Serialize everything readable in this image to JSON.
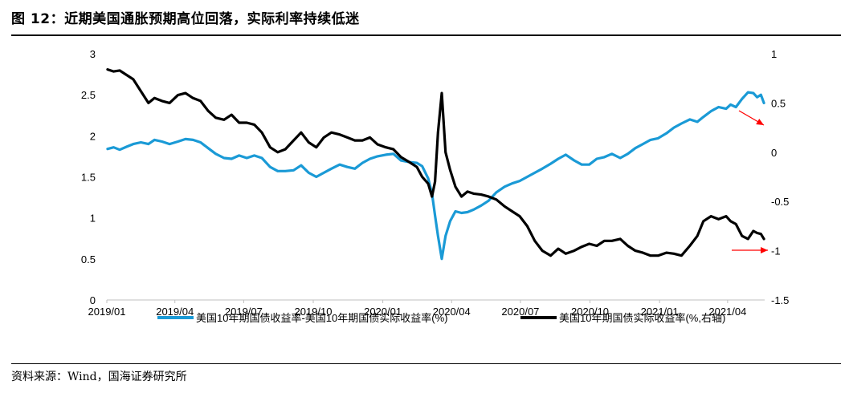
{
  "title": "图 12：近期美国通胀预期高位回落，实际利率持续低迷",
  "source": "资料来源：Wind，国海证券研究所",
  "colors": {
    "blue": "#1a9ad6",
    "black": "#000000",
    "red": "#ff0000",
    "axis": "#bfbfbf"
  },
  "chart_data": {
    "type": "line",
    "x_ticks": [
      "2019/01",
      "2019/04",
      "2019/07",
      "2019/10",
      "2020/01",
      "2020/04",
      "2020/07",
      "2020/10",
      "2021/01",
      "2021/04"
    ],
    "x_range": [
      "2019-01-01",
      "2021-05-20"
    ],
    "y_left": {
      "min": 0,
      "max": 3,
      "ticks": [
        "0",
        "0.5",
        "1",
        "1.5",
        "2",
        "2.5",
        "3"
      ]
    },
    "y_right": {
      "min": -1.5,
      "max": 1,
      "ticks": [
        "-1.5",
        "-1",
        "-0.5",
        "0",
        "0.5",
        "1"
      ]
    },
    "grid": false,
    "legend_position": "bottom",
    "series": [
      {
        "name": "美国10年期国债收益率-美国10年期国债实际收益率(%)",
        "axis": "left",
        "color": "#1a9ad6",
        "points": [
          [
            "2019-01-02",
            1.84
          ],
          [
            "2019-01-10",
            1.86
          ],
          [
            "2019-01-18",
            1.83
          ],
          [
            "2019-01-28",
            1.87
          ],
          [
            "2019-02-05",
            1.9
          ],
          [
            "2019-02-15",
            1.92
          ],
          [
            "2019-02-25",
            1.9
          ],
          [
            "2019-03-05",
            1.95
          ],
          [
            "2019-03-15",
            1.93
          ],
          [
            "2019-03-25",
            1.9
          ],
          [
            "2019-04-05",
            1.93
          ],
          [
            "2019-04-15",
            1.96
          ],
          [
            "2019-04-25",
            1.95
          ],
          [
            "2019-05-05",
            1.92
          ],
          [
            "2019-05-15",
            1.85
          ],
          [
            "2019-05-25",
            1.78
          ],
          [
            "2019-06-05",
            1.73
          ],
          [
            "2019-06-15",
            1.72
          ],
          [
            "2019-06-25",
            1.76
          ],
          [
            "2019-07-05",
            1.73
          ],
          [
            "2019-07-15",
            1.76
          ],
          [
            "2019-07-25",
            1.73
          ],
          [
            "2019-08-05",
            1.62
          ],
          [
            "2019-08-15",
            1.57
          ],
          [
            "2019-08-25",
            1.57
          ],
          [
            "2019-09-05",
            1.58
          ],
          [
            "2019-09-15",
            1.64
          ],
          [
            "2019-09-25",
            1.55
          ],
          [
            "2019-10-05",
            1.5
          ],
          [
            "2019-10-15",
            1.55
          ],
          [
            "2019-10-25",
            1.6
          ],
          [
            "2019-11-05",
            1.65
          ],
          [
            "2019-11-15",
            1.62
          ],
          [
            "2019-11-25",
            1.6
          ],
          [
            "2019-12-05",
            1.67
          ],
          [
            "2019-12-15",
            1.72
          ],
          [
            "2019-12-25",
            1.75
          ],
          [
            "2020-01-05",
            1.77
          ],
          [
            "2020-01-15",
            1.78
          ],
          [
            "2020-01-25",
            1.7
          ],
          [
            "2020-02-05",
            1.68
          ],
          [
            "2020-02-15",
            1.67
          ],
          [
            "2020-02-22",
            1.63
          ],
          [
            "2020-03-01",
            1.48
          ],
          [
            "2020-03-06",
            1.3
          ],
          [
            "2020-03-10",
            1.03
          ],
          [
            "2020-03-14",
            0.78
          ],
          [
            "2020-03-19",
            0.5
          ],
          [
            "2020-03-24",
            0.78
          ],
          [
            "2020-03-30",
            0.96
          ],
          [
            "2020-04-06",
            1.08
          ],
          [
            "2020-04-14",
            1.06
          ],
          [
            "2020-04-22",
            1.07
          ],
          [
            "2020-04-30",
            1.1
          ],
          [
            "2020-05-10",
            1.15
          ],
          [
            "2020-05-20",
            1.21
          ],
          [
            "2020-05-30",
            1.31
          ],
          [
            "2020-06-10",
            1.38
          ],
          [
            "2020-06-20",
            1.42
          ],
          [
            "2020-06-30",
            1.45
          ],
          [
            "2020-07-10",
            1.5
          ],
          [
            "2020-07-20",
            1.55
          ],
          [
            "2020-07-30",
            1.6
          ],
          [
            "2020-08-10",
            1.66
          ],
          [
            "2020-08-20",
            1.72
          ],
          [
            "2020-08-30",
            1.77
          ],
          [
            "2020-09-10",
            1.7
          ],
          [
            "2020-09-20",
            1.65
          ],
          [
            "2020-09-30",
            1.65
          ],
          [
            "2020-10-10",
            1.72
          ],
          [
            "2020-10-20",
            1.74
          ],
          [
            "2020-10-30",
            1.78
          ],
          [
            "2020-11-10",
            1.73
          ],
          [
            "2020-11-20",
            1.78
          ],
          [
            "2020-11-30",
            1.85
          ],
          [
            "2020-12-10",
            1.9
          ],
          [
            "2020-12-20",
            1.95
          ],
          [
            "2020-12-30",
            1.97
          ],
          [
            "2021-01-10",
            2.03
          ],
          [
            "2021-01-20",
            2.1
          ],
          [
            "2021-01-30",
            2.15
          ],
          [
            "2021-02-10",
            2.2
          ],
          [
            "2021-02-20",
            2.17
          ],
          [
            "2021-02-28",
            2.23
          ],
          [
            "2021-03-10",
            2.3
          ],
          [
            "2021-03-20",
            2.35
          ],
          [
            "2021-03-30",
            2.33
          ],
          [
            "2021-04-05",
            2.38
          ],
          [
            "2021-04-12",
            2.35
          ],
          [
            "2021-04-20",
            2.45
          ],
          [
            "2021-04-28",
            2.53
          ],
          [
            "2021-05-05",
            2.52
          ],
          [
            "2021-05-10",
            2.47
          ],
          [
            "2021-05-15",
            2.5
          ],
          [
            "2021-05-19",
            2.4
          ]
        ]
      },
      {
        "name": "美国10年期国债实际收益率(%,右轴)",
        "axis": "right",
        "color": "#000000",
        "points": [
          [
            "2019-01-02",
            0.84
          ],
          [
            "2019-01-10",
            0.82
          ],
          [
            "2019-01-18",
            0.83
          ],
          [
            "2019-01-28",
            0.78
          ],
          [
            "2019-02-05",
            0.74
          ],
          [
            "2019-02-15",
            0.62
          ],
          [
            "2019-02-25",
            0.5
          ],
          [
            "2019-03-05",
            0.55
          ],
          [
            "2019-03-15",
            0.52
          ],
          [
            "2019-03-25",
            0.5
          ],
          [
            "2019-04-05",
            0.58
          ],
          [
            "2019-04-15",
            0.6
          ],
          [
            "2019-04-25",
            0.55
          ],
          [
            "2019-05-05",
            0.52
          ],
          [
            "2019-05-15",
            0.42
          ],
          [
            "2019-05-25",
            0.35
          ],
          [
            "2019-06-05",
            0.33
          ],
          [
            "2019-06-15",
            0.38
          ],
          [
            "2019-06-25",
            0.3
          ],
          [
            "2019-07-05",
            0.3
          ],
          [
            "2019-07-15",
            0.28
          ],
          [
            "2019-07-25",
            0.2
          ],
          [
            "2019-08-05",
            0.05
          ],
          [
            "2019-08-15",
            0.0
          ],
          [
            "2019-08-25",
            0.03
          ],
          [
            "2019-09-05",
            0.12
          ],
          [
            "2019-09-15",
            0.2
          ],
          [
            "2019-09-25",
            0.1
          ],
          [
            "2019-10-05",
            0.05
          ],
          [
            "2019-10-15",
            0.15
          ],
          [
            "2019-10-25",
            0.2
          ],
          [
            "2019-11-05",
            0.18
          ],
          [
            "2019-11-15",
            0.15
          ],
          [
            "2019-11-25",
            0.12
          ],
          [
            "2019-12-05",
            0.12
          ],
          [
            "2019-12-15",
            0.15
          ],
          [
            "2019-12-25",
            0.08
          ],
          [
            "2020-01-05",
            0.05
          ],
          [
            "2020-01-15",
            0.03
          ],
          [
            "2020-01-25",
            -0.05
          ],
          [
            "2020-02-05",
            -0.1
          ],
          [
            "2020-02-15",
            -0.15
          ],
          [
            "2020-02-22",
            -0.25
          ],
          [
            "2020-03-01",
            -0.32
          ],
          [
            "2020-03-06",
            -0.45
          ],
          [
            "2020-03-10",
            -0.3
          ],
          [
            "2020-03-14",
            0.2
          ],
          [
            "2020-03-19",
            0.6
          ],
          [
            "2020-03-24",
            0.0
          ],
          [
            "2020-03-30",
            -0.18
          ],
          [
            "2020-04-06",
            -0.35
          ],
          [
            "2020-04-14",
            -0.45
          ],
          [
            "2020-04-22",
            -0.4
          ],
          [
            "2020-04-30",
            -0.42
          ],
          [
            "2020-05-10",
            -0.43
          ],
          [
            "2020-05-20",
            -0.45
          ],
          [
            "2020-05-30",
            -0.48
          ],
          [
            "2020-06-10",
            -0.55
          ],
          [
            "2020-06-20",
            -0.6
          ],
          [
            "2020-06-30",
            -0.65
          ],
          [
            "2020-07-10",
            -0.75
          ],
          [
            "2020-07-20",
            -0.9
          ],
          [
            "2020-07-30",
            -1.0
          ],
          [
            "2020-08-10",
            -1.05
          ],
          [
            "2020-08-20",
            -0.98
          ],
          [
            "2020-08-30",
            -1.03
          ],
          [
            "2020-09-10",
            -1.0
          ],
          [
            "2020-09-20",
            -0.96
          ],
          [
            "2020-09-30",
            -0.93
          ],
          [
            "2020-10-10",
            -0.95
          ],
          [
            "2020-10-20",
            -0.9
          ],
          [
            "2020-10-30",
            -0.9
          ],
          [
            "2020-11-10",
            -0.88
          ],
          [
            "2020-11-20",
            -0.95
          ],
          [
            "2020-11-30",
            -1.0
          ],
          [
            "2020-12-10",
            -1.02
          ],
          [
            "2020-12-20",
            -1.05
          ],
          [
            "2020-12-30",
            -1.05
          ],
          [
            "2021-01-10",
            -1.02
          ],
          [
            "2021-01-20",
            -1.03
          ],
          [
            "2021-01-30",
            -1.05
          ],
          [
            "2021-02-10",
            -0.95
          ],
          [
            "2021-02-20",
            -0.85
          ],
          [
            "2021-02-28",
            -0.7
          ],
          [
            "2021-03-10",
            -0.65
          ],
          [
            "2021-03-20",
            -0.68
          ],
          [
            "2021-03-30",
            -0.65
          ],
          [
            "2021-04-05",
            -0.7
          ],
          [
            "2021-04-12",
            -0.73
          ],
          [
            "2021-04-20",
            -0.85
          ],
          [
            "2021-04-28",
            -0.88
          ],
          [
            "2021-05-05",
            -0.8
          ],
          [
            "2021-05-10",
            -0.82
          ],
          [
            "2021-05-15",
            -0.83
          ],
          [
            "2021-05-19",
            -0.88
          ]
        ]
      }
    ]
  }
}
